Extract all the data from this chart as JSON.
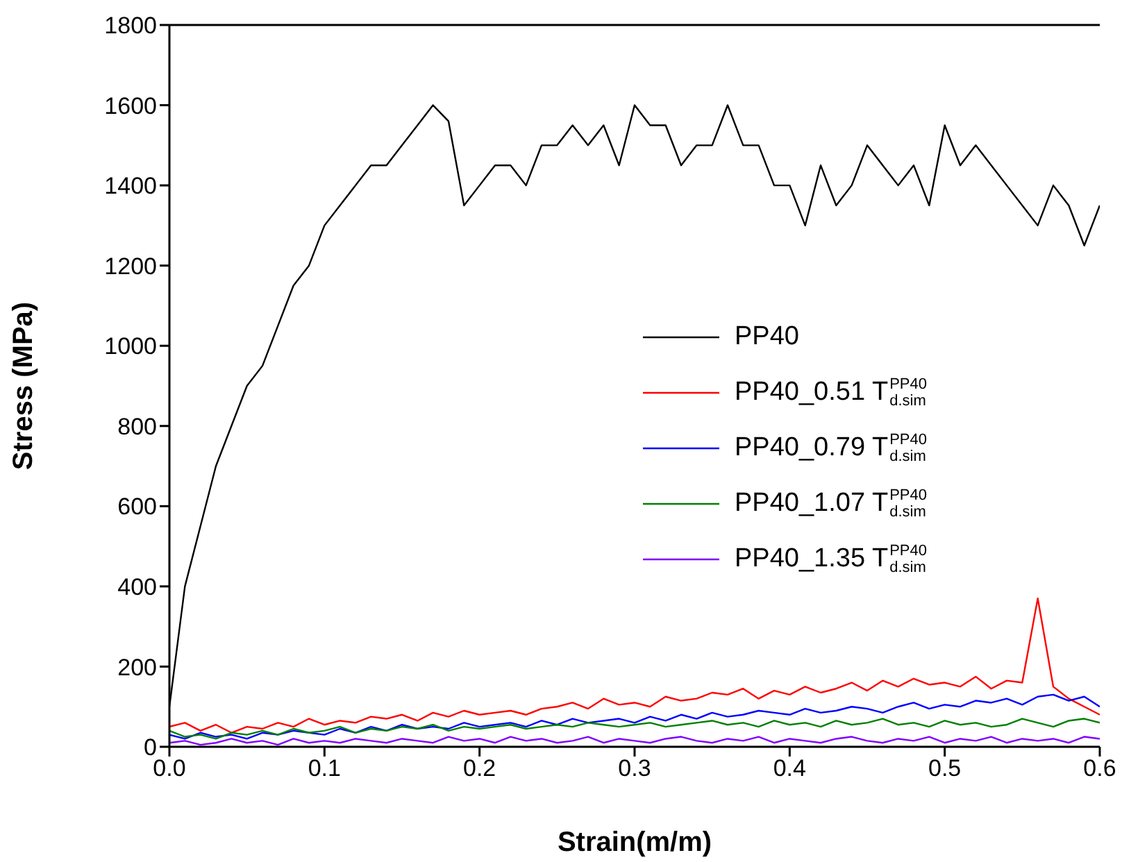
{
  "chart_data": {
    "type": "line",
    "xlabel": "Strain(m/m)",
    "ylabel": "Stress (MPa)",
    "x": [
      0,
      0.01,
      0.02,
      0.03,
      0.04,
      0.05,
      0.06,
      0.07,
      0.08,
      0.09,
      0.1,
      0.11,
      0.12,
      0.13,
      0.14,
      0.15,
      0.16,
      0.17,
      0.18,
      0.19,
      0.2,
      0.21,
      0.22,
      0.23,
      0.24,
      0.25,
      0.26,
      0.27,
      0.28,
      0.29,
      0.3,
      0.31,
      0.32,
      0.33,
      0.34,
      0.35,
      0.36,
      0.37,
      0.38,
      0.39,
      0.4,
      0.41,
      0.42,
      0.43,
      0.44,
      0.45,
      0.46,
      0.47,
      0.48,
      0.49,
      0.5,
      0.51,
      0.52,
      0.53,
      0.54,
      0.55,
      0.56,
      0.57,
      0.58,
      0.59,
      0.6
    ],
    "xlim": [
      0,
      0.6
    ],
    "xticks": [
      {
        "value": 0,
        "label": "0.0"
      },
      0.1,
      0.2,
      0.3,
      0.4,
      0.5,
      0.6
    ],
    "ylim": [
      0,
      1800
    ],
    "yticks": [
      0,
      200,
      400,
      600,
      800,
      1000,
      1200,
      1400,
      1600,
      1800
    ],
    "grid": false,
    "legend": "right",
    "marker": "none",
    "line_style": "solid",
    "series": [
      {
        "name": "PP40",
        "color": "#000000",
        "values": [
          100,
          400,
          550,
          700,
          800,
          900,
          950,
          1050,
          1150,
          1200,
          1300,
          1350,
          1400,
          1450,
          1450,
          1500,
          1550,
          1600,
          1560,
          1350,
          1400,
          1450,
          1450,
          1400,
          1500,
          1500,
          1550,
          1500,
          1550,
          1450,
          1600,
          1550,
          1550,
          1450,
          1500,
          1500,
          1600,
          1500,
          1500,
          1400,
          1400,
          1300,
          1450,
          1350,
          1400,
          1500,
          1450,
          1400,
          1450,
          1350,
          1550,
          1450,
          1500,
          1450,
          1400,
          1350,
          1300,
          1400,
          1350,
          1250,
          1350
        ]
      },
      {
        "name": "PP40_0.51 T$^{PP40}$$_{d.sim}$",
        "color": "#ff0000",
        "values": [
          50,
          60,
          40,
          55,
          35,
          50,
          45,
          60,
          50,
          70,
          55,
          65,
          60,
          75,
          70,
          80,
          65,
          85,
          75,
          90,
          80,
          85,
          90,
          80,
          95,
          100,
          110,
          95,
          120,
          105,
          110,
          100,
          125,
          115,
          120,
          135,
          130,
          145,
          120,
          140,
          130,
          150,
          135,
          145,
          160,
          140,
          165,
          150,
          170,
          155,
          160,
          150,
          175,
          145,
          165,
          160,
          370,
          150,
          120,
          100,
          80
        ]
      },
      {
        "name": "PP40_0.79 T$^{PP40}$$_{d.sim}$",
        "color": "#0000ff",
        "values": [
          30,
          20,
          35,
          25,
          30,
          20,
          35,
          30,
          40,
          35,
          30,
          45,
          35,
          50,
          40,
          55,
          45,
          50,
          45,
          60,
          50,
          55,
          60,
          50,
          65,
          55,
          70,
          60,
          65,
          70,
          60,
          75,
          65,
          80,
          70,
          85,
          75,
          80,
          90,
          85,
          80,
          95,
          85,
          90,
          100,
          95,
          85,
          100,
          110,
          95,
          105,
          100,
          115,
          110,
          120,
          105,
          125,
          130,
          115,
          125,
          100
        ]
      },
      {
        "name": "PP40_1.07 T$^{PP40}$$_{d.sim}$",
        "color": "#008000",
        "values": [
          40,
          25,
          30,
          20,
          35,
          30,
          40,
          30,
          45,
          35,
          40,
          50,
          35,
          45,
          40,
          50,
          45,
          55,
          40,
          50,
          45,
          50,
          55,
          45,
          50,
          55,
          50,
          60,
          55,
          50,
          55,
          60,
          50,
          55,
          60,
          65,
          55,
          60,
          50,
          65,
          55,
          60,
          50,
          65,
          55,
          60,
          70,
          55,
          60,
          50,
          65,
          55,
          60,
          50,
          55,
          70,
          60,
          50,
          65,
          70,
          60
        ]
      },
      {
        "name": "PP40_1.35 T$^{PP40}$$_{d.sim}$",
        "color": "#8000ff",
        "values": [
          10,
          15,
          5,
          10,
          20,
          10,
          15,
          5,
          20,
          10,
          15,
          10,
          20,
          15,
          10,
          20,
          15,
          10,
          25,
          15,
          20,
          10,
          25,
          15,
          20,
          10,
          15,
          25,
          10,
          20,
          15,
          10,
          20,
          25,
          15,
          10,
          20,
          15,
          25,
          10,
          20,
          15,
          10,
          20,
          25,
          15,
          10,
          20,
          15,
          25,
          10,
          20,
          15,
          25,
          10,
          20,
          15,
          20,
          10,
          25,
          20
        ]
      }
    ]
  }
}
